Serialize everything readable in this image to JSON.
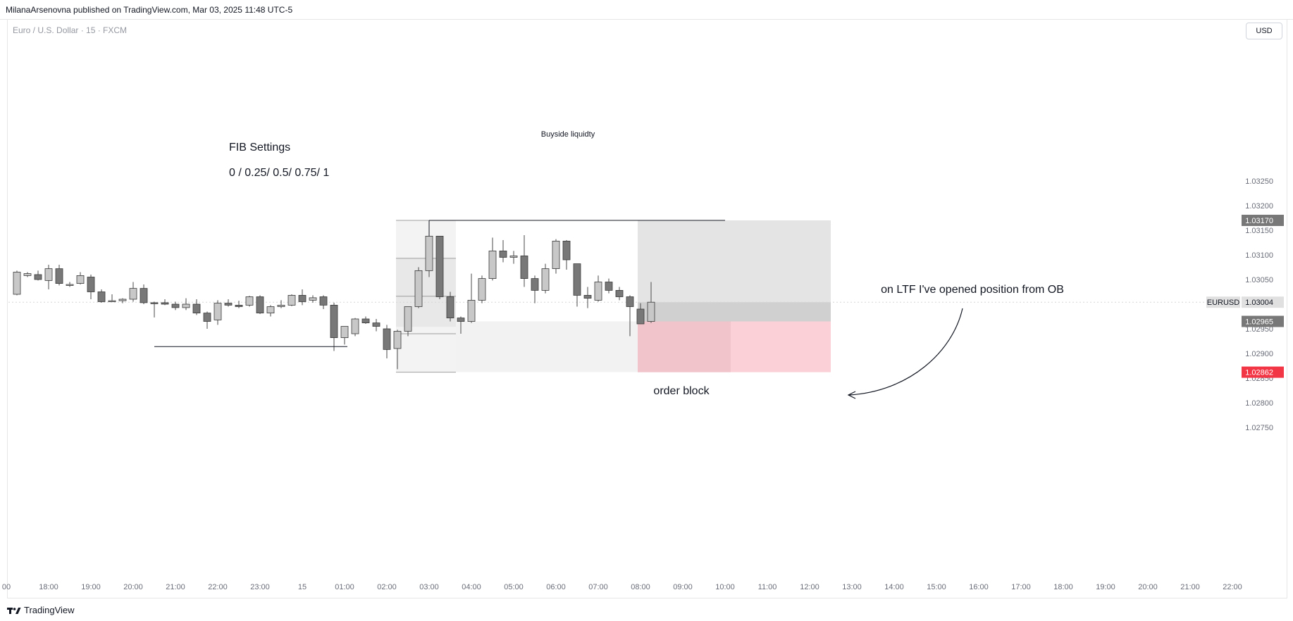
{
  "header": {
    "published_text": "MilanaArsenovna published on TradingView.com, Mar 03, 2025 11:48 UTC-5"
  },
  "chart_header": {
    "symbol_title": "Euro / U.S. Dollar · 15 · FXCM",
    "currency_button": "USD"
  },
  "footer": {
    "brand": "TradingView"
  },
  "colors": {
    "bull_body": "#c8c8c8",
    "bear_body": "#787878",
    "wick": "#4a4a4a",
    "ob_fill": "#fbd0d6",
    "last_price_bg": "#f23645",
    "tag_bg": "#787878"
  },
  "chart_data": {
    "type": "candlestick",
    "title": "Euro / U.S. Dollar · 15 · FXCM",
    "price_axis": {
      "min": 1.0273,
      "max": 1.0327,
      "ticks": [
        "1.03250",
        "1.03200",
        "1.03150",
        "1.03100",
        "1.03050",
        "1.02950",
        "1.02900",
        "1.02850",
        "1.02800",
        "1.02750"
      ],
      "tick_values": [
        1.0325,
        1.032,
        1.0315,
        1.031,
        1.0305,
        1.0295,
        1.029,
        1.0285,
        1.028,
        1.0275
      ],
      "tags": [
        {
          "value": 1.0317,
          "label": "1.03170",
          "style": "gray"
        },
        {
          "value": 1.03004,
          "label": "1.03004",
          "symbol": "EURUSD",
          "style": "light"
        },
        {
          "value": 1.02965,
          "label": "1.02965",
          "style": "gray"
        },
        {
          "value": 1.02862,
          "label": "1.02862",
          "style": "red"
        }
      ]
    },
    "time_axis": {
      "labels": [
        "00",
        "18:00",
        "19:00",
        "20:00",
        "21:00",
        "22:00",
        "23:00",
        "15",
        "01:00",
        "02:00",
        "03:00",
        "04:00",
        "05:00",
        "06:00",
        "07:00",
        "08:00",
        "09:00",
        "10:00",
        "11:00",
        "12:00",
        "13:00",
        "14:00",
        "15:00",
        "16:00",
        "17:00",
        "18:00",
        "19:00",
        "20:00",
        "21:00",
        "22:00"
      ],
      "label_positions": [
        -1,
        3,
        7,
        11,
        15,
        19,
        23,
        27,
        31,
        35,
        39,
        43,
        47,
        51,
        55,
        59,
        63,
        67,
        71,
        75,
        79,
        83,
        87,
        91,
        95,
        99,
        103,
        107,
        111,
        115
      ]
    },
    "candles": [
      {
        "o": 1.0302,
        "h": 1.03068,
        "l": 1.03018,
        "c": 1.03065
      },
      {
        "o": 1.03058,
        "h": 1.03065,
        "l": 1.03055,
        "c": 1.03062
      },
      {
        "o": 1.0306,
        "h": 1.03068,
        "l": 1.03048,
        "c": 1.0305
      },
      {
        "o": 1.03048,
        "h": 1.0308,
        "l": 1.0303,
        "c": 1.03072
      },
      {
        "o": 1.03072,
        "h": 1.0308,
        "l": 1.03038,
        "c": 1.03042
      },
      {
        "o": 1.0304,
        "h": 1.03045,
        "l": 1.03035,
        "c": 1.0304
      },
      {
        "o": 1.03042,
        "h": 1.03065,
        "l": 1.0304,
        "c": 1.03058
      },
      {
        "o": 1.03055,
        "h": 1.0306,
        "l": 1.0301,
        "c": 1.03025
      },
      {
        "o": 1.03025,
        "h": 1.0303,
        "l": 1.03003,
        "c": 1.03005
      },
      {
        "o": 1.03005,
        "h": 1.0302,
        "l": 1.03005,
        "c": 1.03007
      },
      {
        "o": 1.03007,
        "h": 1.03012,
        "l": 1.03002,
        "c": 1.0301
      },
      {
        "o": 1.0301,
        "h": 1.03045,
        "l": 1.03005,
        "c": 1.03032
      },
      {
        "o": 1.03032,
        "h": 1.0304,
        "l": 1.03,
        "c": 1.03003
      },
      {
        "o": 1.03003,
        "h": 1.03005,
        "l": 1.02973,
        "c": 1.03001
      },
      {
        "o": 1.03003,
        "h": 1.0301,
        "l": 1.02998,
        "c": 1.03
      },
      {
        "o": 1.03,
        "h": 1.03005,
        "l": 1.02988,
        "c": 1.02993
      },
      {
        "o": 1.02993,
        "h": 1.03012,
        "l": 1.02988,
        "c": 1.03
      },
      {
        "o": 1.03,
        "h": 1.0301,
        "l": 1.02978,
        "c": 1.02982
      },
      {
        "o": 1.02982,
        "h": 1.02985,
        "l": 1.0295,
        "c": 1.02965
      },
      {
        "o": 1.02968,
        "h": 1.03008,
        "l": 1.02958,
        "c": 1.03002
      },
      {
        "o": 1.03002,
        "h": 1.0301,
        "l": 1.02995,
        "c": 1.02998
      },
      {
        "o": 1.02998,
        "h": 1.03007,
        "l": 1.02992,
        "c": 1.02995
      },
      {
        "o": 1.02998,
        "h": 1.03017,
        "l": 1.02995,
        "c": 1.03015
      },
      {
        "o": 1.03015,
        "h": 1.03018,
        "l": 1.0298,
        "c": 1.02982
      },
      {
        "o": 1.02982,
        "h": 1.02998,
        "l": 1.02975,
        "c": 1.02995
      },
      {
        "o": 1.02995,
        "h": 1.03008,
        "l": 1.02992,
        "c": 1.02998
      },
      {
        "o": 1.02998,
        "h": 1.0302,
        "l": 1.02996,
        "c": 1.03018
      },
      {
        "o": 1.03018,
        "h": 1.0303,
        "l": 1.02998,
        "c": 1.03005
      },
      {
        "o": 1.03008,
        "h": 1.03018,
        "l": 1.03003,
        "c": 1.03013
      },
      {
        "o": 1.03015,
        "h": 1.03018,
        "l": 1.0299,
        "c": 1.02998
      },
      {
        "o": 1.02998,
        "h": 1.03003,
        "l": 1.02905,
        "c": 1.02932
      },
      {
        "o": 1.02932,
        "h": 1.02955,
        "l": 1.02918,
        "c": 1.02955
      },
      {
        "o": 1.0294,
        "h": 1.02972,
        "l": 1.02935,
        "c": 1.0297
      },
      {
        "o": 1.0297,
        "h": 1.02975,
        "l": 1.0296,
        "c": 1.02962
      },
      {
        "o": 1.02962,
        "h": 1.0297,
        "l": 1.02945,
        "c": 1.02955
      },
      {
        "o": 1.0295,
        "h": 1.02958,
        "l": 1.0289,
        "c": 1.02908
      },
      {
        "o": 1.0291,
        "h": 1.02948,
        "l": 1.02868,
        "c": 1.02945
      },
      {
        "o": 1.02945,
        "h": 1.02995,
        "l": 1.02935,
        "c": 1.02995
      },
      {
        "o": 1.02995,
        "h": 1.03075,
        "l": 1.02992,
        "c": 1.03068
      },
      {
        "o": 1.03068,
        "h": 1.0317,
        "l": 1.03055,
        "c": 1.03138
      },
      {
        "o": 1.03138,
        "h": 1.03138,
        "l": 1.0301,
        "c": 1.03015
      },
      {
        "o": 1.03015,
        "h": 1.03025,
        "l": 1.02965,
        "c": 1.02972
      },
      {
        "o": 1.02972,
        "h": 1.02975,
        "l": 1.0294,
        "c": 1.02965
      },
      {
        "o": 1.02965,
        "h": 1.03062,
        "l": 1.02962,
        "c": 1.03008
      },
      {
        "o": 1.03008,
        "h": 1.03058,
        "l": 1.03002,
        "c": 1.03052
      },
      {
        "o": 1.03052,
        "h": 1.03135,
        "l": 1.03048,
        "c": 1.03108
      },
      {
        "o": 1.03108,
        "h": 1.0313,
        "l": 1.03085,
        "c": 1.03095
      },
      {
        "o": 1.03095,
        "h": 1.03108,
        "l": 1.03082,
        "c": 1.03098
      },
      {
        "o": 1.03098,
        "h": 1.0314,
        "l": 1.03035,
        "c": 1.03052
      },
      {
        "o": 1.03052,
        "h": 1.03058,
        "l": 1.03002,
        "c": 1.03028
      },
      {
        "o": 1.03028,
        "h": 1.03082,
        "l": 1.03022,
        "c": 1.03072
      },
      {
        "o": 1.03072,
        "h": 1.03132,
        "l": 1.03062,
        "c": 1.03128
      },
      {
        "o": 1.03128,
        "h": 1.0313,
        "l": 1.0307,
        "c": 1.0309
      },
      {
        "o": 1.03082,
        "h": 1.03082,
        "l": 1.02995,
        "c": 1.03018
      },
      {
        "o": 1.03018,
        "h": 1.03035,
        "l": 1.02992,
        "c": 1.03012
      },
      {
        "o": 1.03008,
        "h": 1.03058,
        "l": 1.03005,
        "c": 1.03045
      },
      {
        "o": 1.03045,
        "h": 1.03052,
        "l": 1.03022,
        "c": 1.03028
      },
      {
        "o": 1.03028,
        "h": 1.03035,
        "l": 1.03008,
        "c": 1.03015
      },
      {
        "o": 1.03015,
        "h": 1.03018,
        "l": 1.02935,
        "c": 1.02995
      },
      {
        "o": 1.0299,
        "h": 1.03002,
        "l": 1.0296,
        "c": 1.0296
      },
      {
        "o": 1.02965,
        "h": 1.03045,
        "l": 1.02962,
        "c": 1.03004
      }
    ],
    "annotations": {
      "fib_settings_title": "FIB Settings",
      "fib_levels": "0 / 0.25/ 0.5/ 0.75/ 1",
      "buyside_label": "Buyside liquidty",
      "order_block_label": "order block",
      "position_note": "on LTF I've opened position from OB"
    },
    "grid": false,
    "legend": "none"
  }
}
